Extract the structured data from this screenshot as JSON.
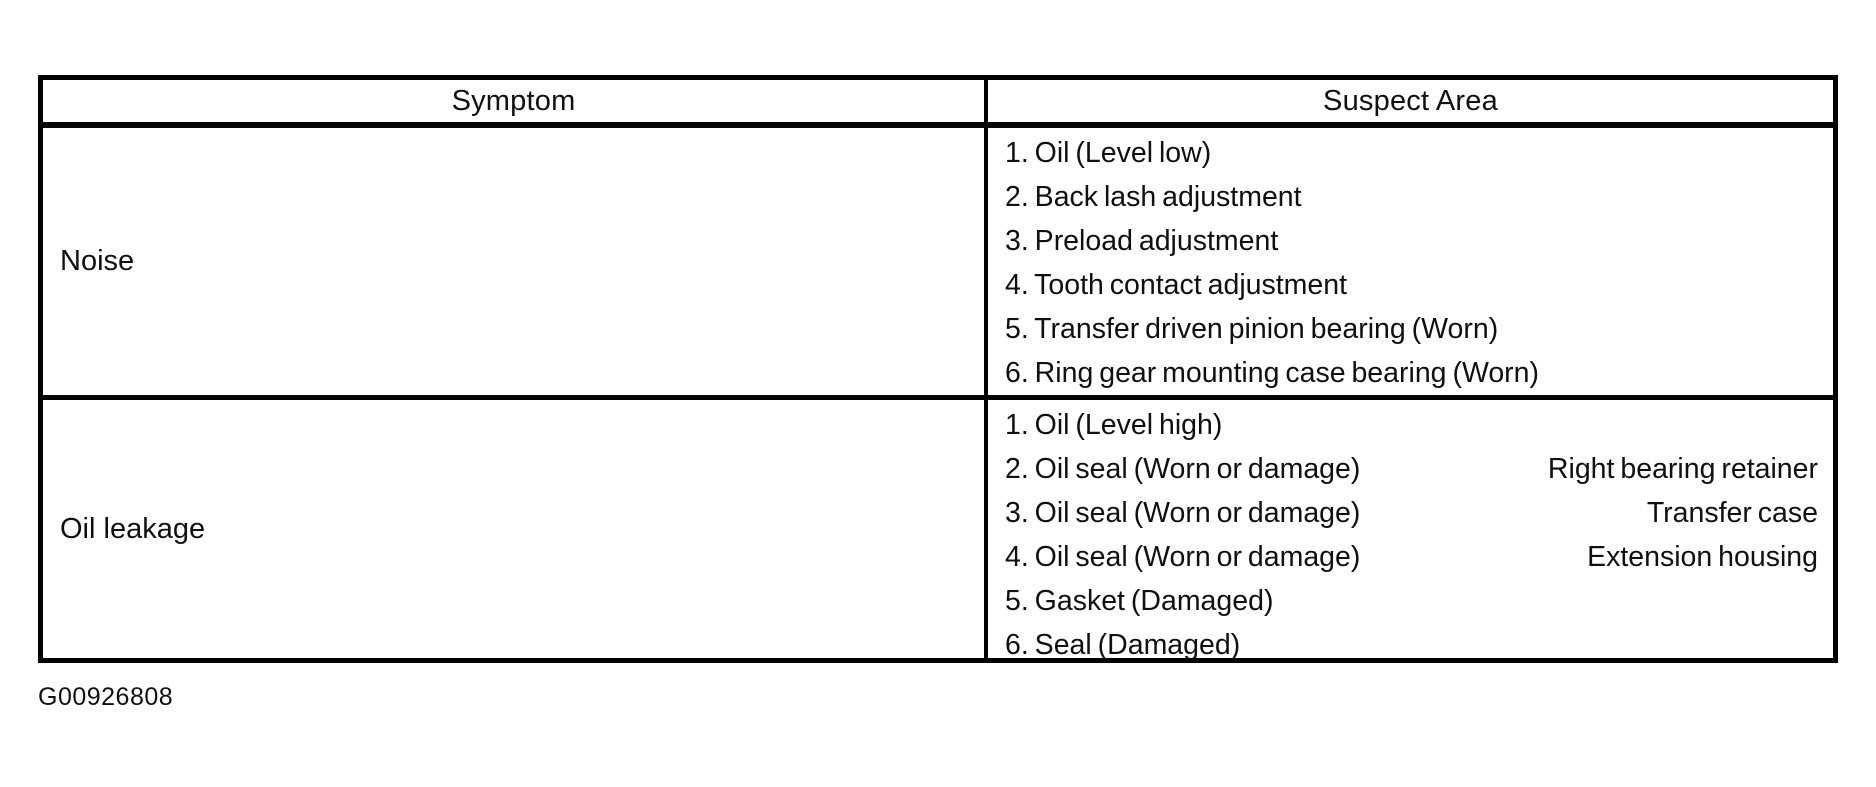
{
  "table": {
    "headers": {
      "symptom": "Symptom",
      "suspect_area": "Suspect Area"
    },
    "rows": [
      {
        "symptom": "Noise",
        "suspects": [
          {
            "text": "1. Oil (Level low)",
            "location": ""
          },
          {
            "text": "2. Back lash adjustment",
            "location": ""
          },
          {
            "text": "3. Preload adjustment",
            "location": ""
          },
          {
            "text": "4. Tooth contact adjustment",
            "location": ""
          },
          {
            "text": "5. Transfer driven pinion bearing (Worn)",
            "location": ""
          },
          {
            "text": "6. Ring gear mounting case bearing (Worn)",
            "location": ""
          }
        ]
      },
      {
        "symptom": "Oil leakage",
        "suspects": [
          {
            "text": "1. Oil (Level high)",
            "location": ""
          },
          {
            "text": "2. Oil seal (Worn or damage)",
            "location": "Right bearing retainer"
          },
          {
            "text": "3. Oil seal (Worn or damage)",
            "location": "Transfer case"
          },
          {
            "text": "4. Oil seal (Worn or damage)",
            "location": "Extension housing"
          },
          {
            "text": "5. Gasket (Damaged)",
            "location": ""
          },
          {
            "text": "6. Seal (Damaged)",
            "location": ""
          }
        ]
      }
    ]
  },
  "caption": "G00926808",
  "colors": {
    "ink": "#101010",
    "border": "#000000",
    "paper": "#ffffff"
  }
}
